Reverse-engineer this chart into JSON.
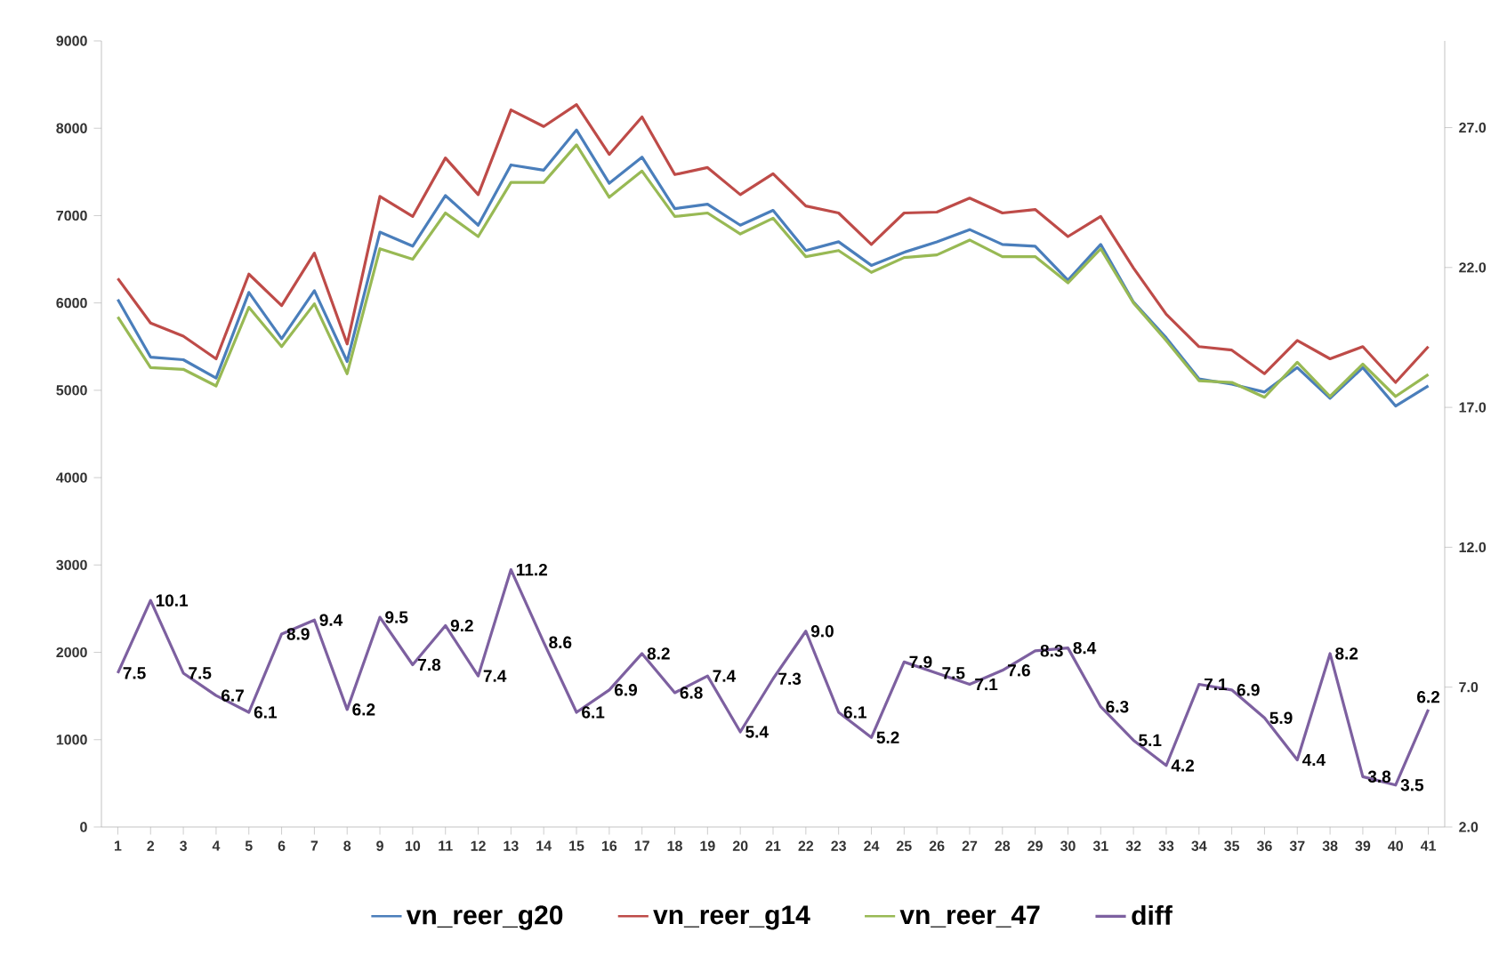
{
  "chart_data": {
    "type": "line",
    "categories": [
      "1",
      "2",
      "3",
      "4",
      "5",
      "6",
      "7",
      "8",
      "9",
      "10",
      "11",
      "12",
      "13",
      "14",
      "15",
      "16",
      "17",
      "18",
      "19",
      "20",
      "21",
      "22",
      "23",
      "24",
      "25",
      "26",
      "27",
      "28",
      "29",
      "30",
      "31",
      "32",
      "33",
      "34",
      "35",
      "36",
      "37",
      "38",
      "39",
      "40",
      "41"
    ],
    "series": [
      {
        "name": "vn_reer_g20",
        "color": "#4a7ebb",
        "values": [
          6040,
          5380,
          5350,
          5140,
          6120,
          5590,
          6140,
          5330,
          6810,
          6650,
          7230,
          6890,
          7580,
          7520,
          7980,
          7370,
          7670,
          7080,
          7130,
          6890,
          7060,
          6600,
          6700,
          6430,
          6580,
          6700,
          6840,
          6670,
          6650,
          6260,
          6670,
          6010,
          5600,
          5130,
          5070,
          4980,
          5260,
          4910,
          5260,
          4820,
          5050
        ]
      },
      {
        "name": "vn_reer_g14",
        "color": "#be4b48",
        "values": [
          6280,
          5770,
          5620,
          5360,
          6330,
          5970,
          6570,
          5530,
          7220,
          6990,
          7660,
          7240,
          8210,
          8020,
          8270,
          7700,
          8130,
          7470,
          7550,
          7240,
          7480,
          7110,
          7030,
          6670,
          7030,
          7040,
          7200,
          7030,
          7070,
          6760,
          6990,
          6400,
          5870,
          5500,
          5460,
          5190,
          5570,
          5360,
          5500,
          5090,
          5500
        ]
      },
      {
        "name": "vn_reer_47",
        "color": "#98b954",
        "values": [
          5840,
          5260,
          5240,
          5050,
          5950,
          5500,
          5990,
          5190,
          6620,
          6500,
          7030,
          6760,
          7380,
          7380,
          7810,
          7210,
          7510,
          6990,
          7030,
          6790,
          6970,
          6530,
          6600,
          6350,
          6520,
          6550,
          6720,
          6530,
          6530,
          6230,
          6620,
          6000,
          5570,
          5110,
          5090,
          4920,
          5320,
          4930,
          5300,
          4930,
          5180
        ]
      },
      {
        "name": "diff",
        "color": "#7d60a0",
        "axis": "y2",
        "value_labels": [
          "7.5",
          "10.1",
          "7.5",
          "6.7",
          "6.1",
          "8.9",
          "9.4",
          "6.2",
          "9.5",
          "7.8",
          "9.2",
          "7.4",
          "11.2",
          "8.6",
          "6.1",
          "6.9",
          "8.2",
          "6.8",
          "7.4",
          "5.4",
          "7.3",
          "9.0",
          "6.1",
          "5.2",
          "7.9",
          "7.5",
          "7.1",
          "7.6",
          "8.3",
          "8.4",
          "6.3",
          "5.1",
          "4.2",
          "7.1",
          "6.9",
          "5.9",
          "4.4",
          "8.2",
          "3.8",
          "3.5",
          "6.2"
        ],
        "values": [
          7.5,
          10.1,
          7.5,
          6.7,
          6.1,
          8.9,
          9.4,
          6.2,
          9.5,
          7.8,
          9.2,
          7.4,
          11.2,
          8.6,
          6.1,
          6.9,
          8.2,
          6.8,
          7.4,
          5.4,
          7.3,
          9.0,
          6.1,
          5.2,
          7.9,
          7.5,
          7.1,
          7.6,
          8.3,
          8.4,
          6.3,
          5.1,
          4.2,
          7.1,
          6.9,
          5.9,
          4.4,
          8.2,
          3.8,
          3.5,
          6.2
        ]
      }
    ],
    "ylim": [
      0,
      9000
    ],
    "yticks": [
      0,
      1000,
      2000,
      3000,
      4000,
      5000,
      6000,
      7000,
      8000,
      9000
    ],
    "y2lim": [
      2,
      30.1
    ],
    "y2ticks": [
      {
        "value": 2,
        "label": "2.0"
      },
      {
        "value": 7,
        "label": "7.0"
      },
      {
        "value": 12,
        "label": "12.0"
      },
      {
        "value": 17,
        "label": "17.0"
      },
      {
        "value": 22,
        "label": "22.0"
      },
      {
        "value": 27,
        "label": "27.0"
      }
    ],
    "grid": false,
    "legend": "bottom"
  }
}
